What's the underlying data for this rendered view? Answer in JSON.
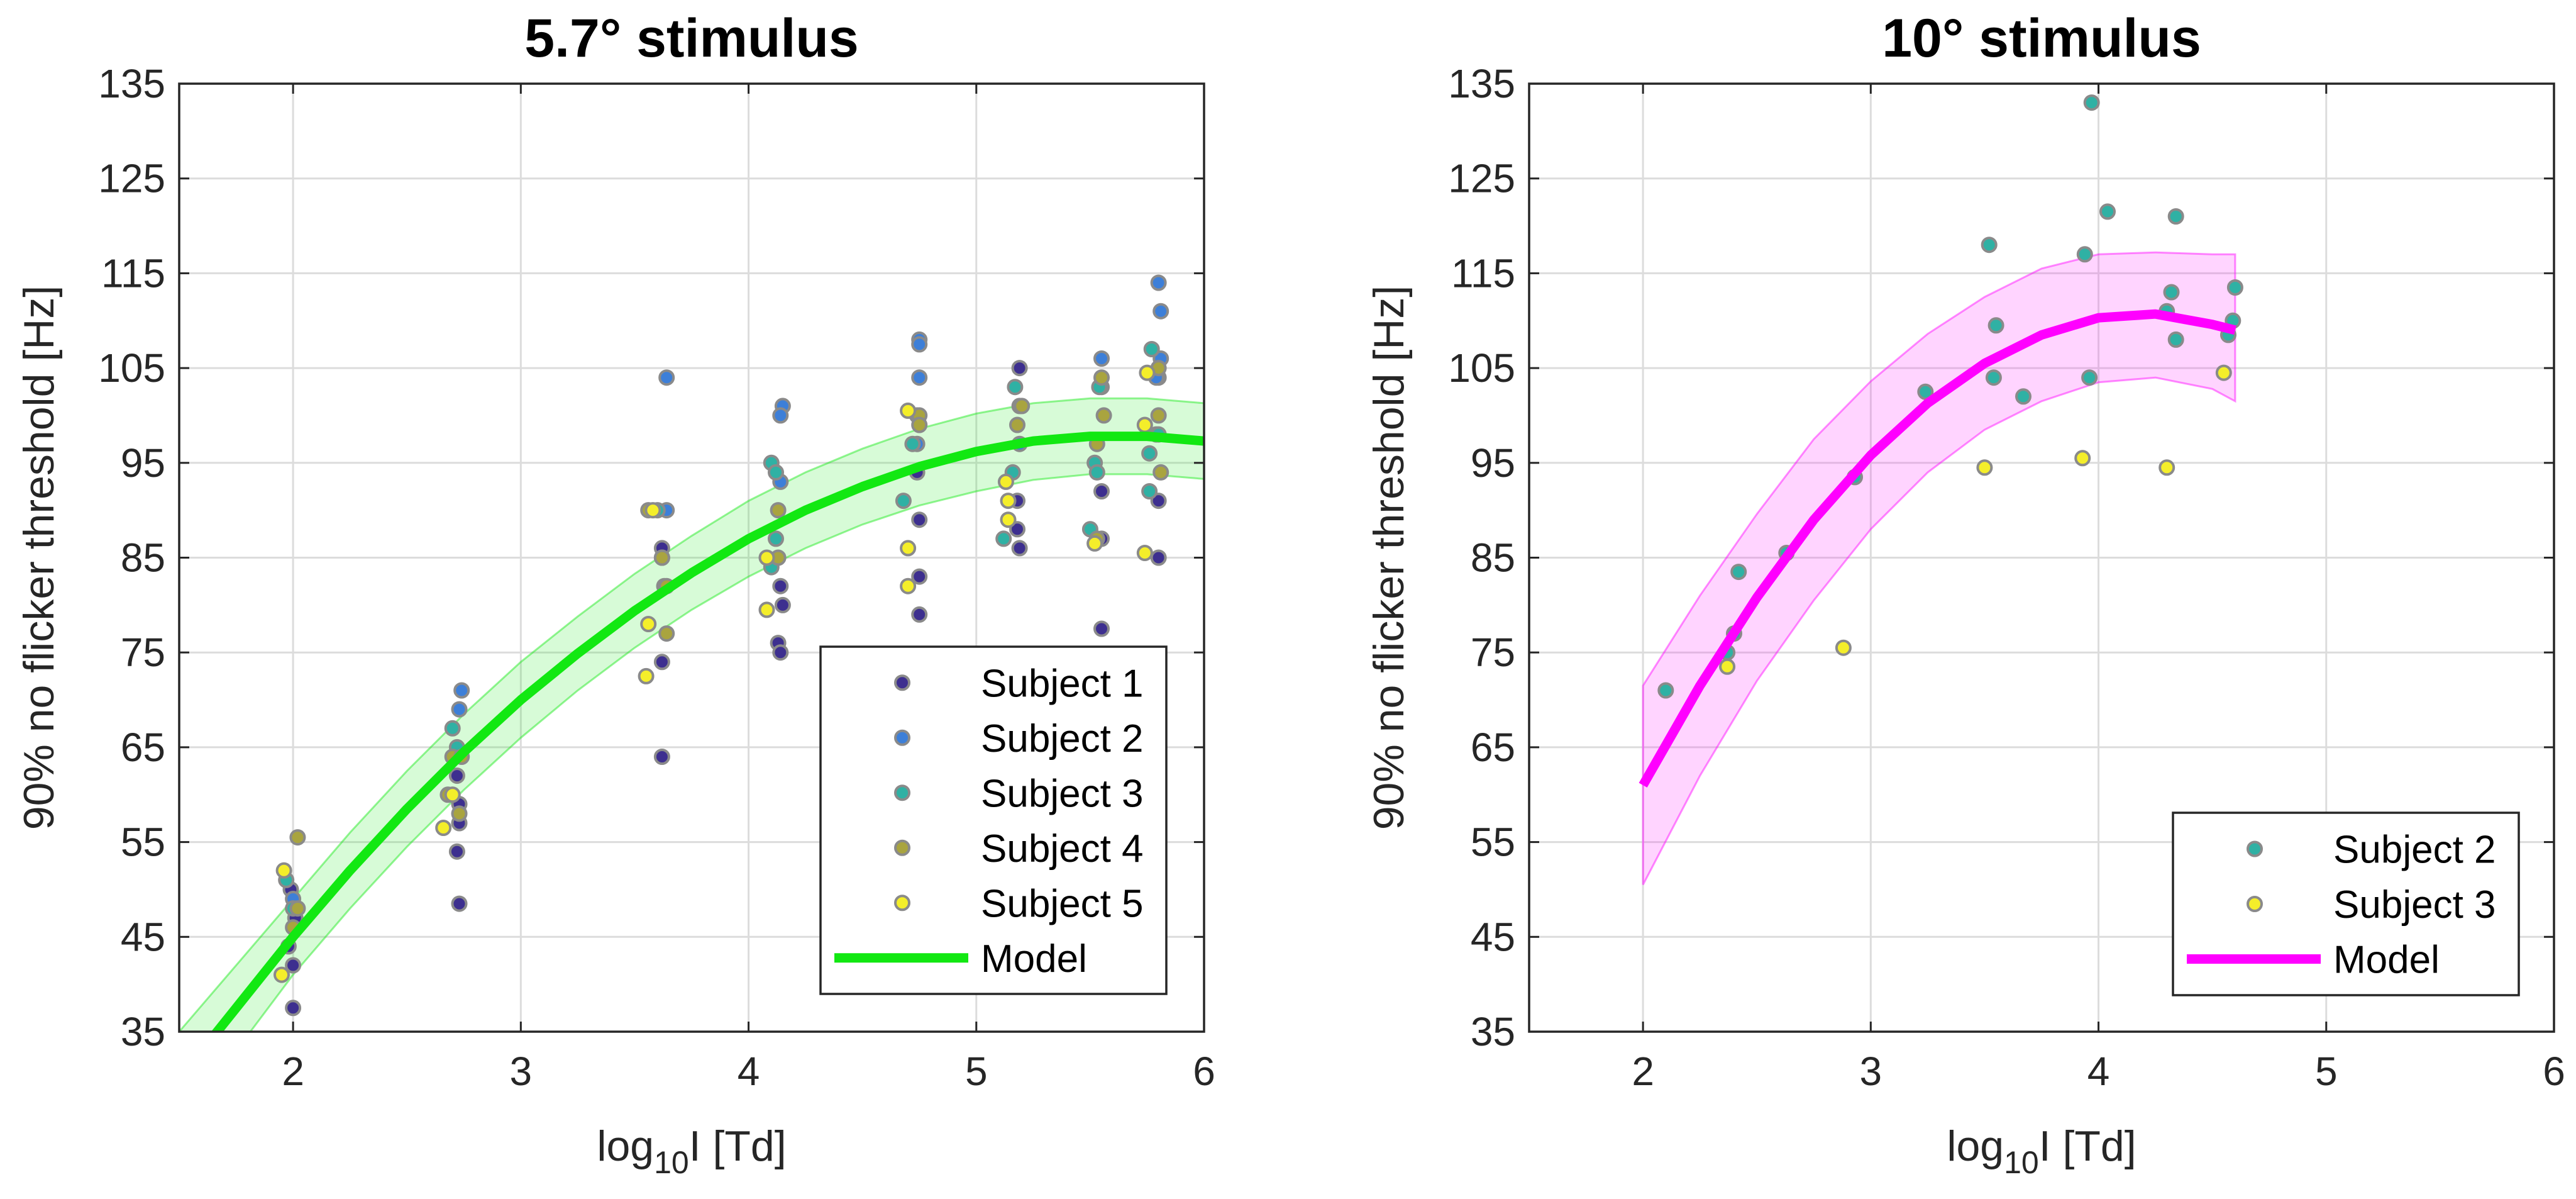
{
  "chart_data": [
    {
      "type": "scatter",
      "title": "5.7° stimulus",
      "xlabel": {
        "base": "log",
        "subscript": "10",
        "rest": "I  [Td]"
      },
      "ylabel": "90% no flicker threshold [Hz]",
      "xlim": [
        1.5,
        6
      ],
      "ylim": [
        35,
        135
      ],
      "xticks": [
        2,
        3,
        4,
        5,
        6
      ],
      "xtick_labels": [
        "2",
        "3",
        "4",
        "5",
        "6"
      ],
      "yticks": [
        35,
        45,
        55,
        65,
        75,
        85,
        95,
        105,
        115,
        125,
        135
      ],
      "ytick_labels": [
        "35",
        "45",
        "55",
        "65",
        "75",
        "85",
        "95",
        "105",
        "115",
        "125",
        "135"
      ],
      "grid": true,
      "legend_position": "bottom-right",
      "series": [
        {
          "name": "Subject 1",
          "color": "#3d2f8f",
          "points": [
            [
              1.98,
              44
            ],
            [
              2.01,
              47
            ],
            [
              2.0,
              42
            ],
            [
              2.0,
              37.5
            ],
            [
              1.99,
              50
            ],
            [
              2.72,
              62
            ],
            [
              2.73,
              59
            ],
            [
              2.73,
              57
            ],
            [
              2.72,
              54
            ],
            [
              2.73,
              48.5
            ],
            [
              3.62,
              64
            ],
            [
              3.62,
              74
            ],
            [
              3.63,
              82
            ],
            [
              3.62,
              86
            ],
            [
              4.13,
              76
            ],
            [
              4.15,
              80
            ],
            [
              4.14,
              82
            ],
            [
              4.14,
              75
            ],
            [
              4.75,
              79
            ],
            [
              4.75,
              83
            ],
            [
              4.75,
              89
            ],
            [
              4.74,
              94
            ],
            [
              5.18,
              88
            ],
            [
              5.19,
              86
            ],
            [
              5.18,
              91
            ],
            [
              5.19,
              105
            ],
            [
              5.55,
              77.5
            ],
            [
              5.55,
              87
            ],
            [
              5.55,
              92
            ],
            [
              5.8,
              85
            ],
            [
              5.8,
              91
            ],
            [
              5.79,
              98
            ],
            [
              5.8,
              104
            ]
          ]
        },
        {
          "name": "Subject 2",
          "color": "#3d7fd8",
          "points": [
            [
              2.0,
              49
            ],
            [
              2.74,
              71
            ],
            [
              2.73,
              69
            ],
            [
              3.64,
              104
            ],
            [
              3.64,
              90
            ],
            [
              4.15,
              101
            ],
            [
              4.14,
              100
            ],
            [
              4.14,
              93
            ],
            [
              4.75,
              108
            ],
            [
              4.75,
              107.5
            ],
            [
              4.75,
              104
            ],
            [
              4.74,
              100
            ],
            [
              4.74,
              97
            ],
            [
              5.19,
              101
            ],
            [
              5.19,
              97
            ],
            [
              5.55,
              106
            ],
            [
              5.55,
              103
            ],
            [
              5.8,
              114
            ],
            [
              5.81,
              111
            ],
            [
              5.81,
              106
            ],
            [
              5.79,
              104
            ]
          ]
        },
        {
          "name": "Subject 3",
          "color": "#2fb1a4",
          "points": [
            [
              1.97,
              51
            ],
            [
              2.0,
              48
            ],
            [
              2.7,
              67
            ],
            [
              2.72,
              65
            ],
            [
              3.6,
              90
            ],
            [
              3.62,
              85
            ],
            [
              4.1,
              95
            ],
            [
              4.12,
              94
            ],
            [
              4.12,
              87
            ],
            [
              4.1,
              84
            ],
            [
              4.72,
              97
            ],
            [
              4.68,
              91
            ],
            [
              5.12,
              87
            ],
            [
              5.17,
              103
            ],
            [
              5.16,
              94
            ],
            [
              5.5,
              88
            ],
            [
              5.52,
              95
            ],
            [
              5.53,
              94
            ],
            [
              5.54,
              103
            ],
            [
              5.77,
              107
            ],
            [
              5.76,
              92
            ],
            [
              5.76,
              96
            ],
            [
              5.8,
              98
            ]
          ]
        },
        {
          "name": "Subject 4",
          "color": "#a9a43f",
          "points": [
            [
              2.02,
              55.5
            ],
            [
              2.02,
              48
            ],
            [
              2.0,
              46
            ],
            [
              2.68,
              60
            ],
            [
              2.7,
              64
            ],
            [
              2.74,
              64
            ],
            [
              2.73,
              58
            ],
            [
              3.56,
              90
            ],
            [
              3.62,
              85
            ],
            [
              3.64,
              82
            ],
            [
              3.64,
              77
            ],
            [
              4.13,
              90
            ],
            [
              4.13,
              85
            ],
            [
              4.75,
              100
            ],
            [
              4.75,
              99
            ],
            [
              5.2,
              101
            ],
            [
              5.18,
              99
            ],
            [
              5.55,
              104
            ],
            [
              5.53,
              97
            ],
            [
              5.53,
              87
            ],
            [
              5.56,
              100
            ],
            [
              5.8,
              100
            ],
            [
              5.81,
              94
            ],
            [
              5.8,
              105
            ]
          ]
        },
        {
          "name": "Subject 5",
          "color": "#f4ee2a",
          "points": [
            [
              1.96,
              52
            ],
            [
              1.95,
              41
            ],
            [
              2.66,
              56.5
            ],
            [
              2.7,
              60
            ],
            [
              3.55,
              72.5
            ],
            [
              3.56,
              78
            ],
            [
              3.58,
              90
            ],
            [
              4.08,
              85
            ],
            [
              4.08,
              79.5
            ],
            [
              4.7,
              100.5
            ],
            [
              4.7,
              86
            ],
            [
              4.7,
              82
            ],
            [
              5.13,
              93
            ],
            [
              5.14,
              91
            ],
            [
              5.14,
              89
            ],
            [
              5.52,
              86.5
            ],
            [
              5.75,
              104.5
            ],
            [
              5.74,
              99
            ],
            [
              5.74,
              85.5
            ]
          ]
        }
      ],
      "model": {
        "name": "Model",
        "color": "#12e812",
        "band_color": "#12e812",
        "x": [
          1.5,
          1.75,
          2.0,
          2.25,
          2.5,
          2.75,
          3.0,
          3.25,
          3.5,
          3.75,
          4.0,
          4.25,
          4.5,
          4.75,
          5.0,
          5.25,
          5.5,
          5.75,
          6.0
        ],
        "y": [
          30,
          37.5,
          45,
          52,
          58.5,
          64.5,
          70,
          74.9,
          79.4,
          83.4,
          87,
          90,
          92.5,
          94.6,
          96.2,
          97.3,
          97.8,
          97.8,
          97.3
        ],
        "lower": [
          25,
          33,
          41,
          48,
          54.5,
          60.5,
          66,
          71,
          75.5,
          79.5,
          83,
          86,
          88.5,
          90.5,
          92,
          93.2,
          93.8,
          93.8,
          93.3
        ],
        "upper": [
          35,
          42,
          49,
          56,
          62.5,
          68.5,
          74,
          78.8,
          83.3,
          87.3,
          91,
          94,
          96.5,
          98.6,
          100.2,
          101.3,
          101.8,
          101.8,
          101.3
        ]
      },
      "legend": [
        "Subject 1",
        "Subject 2",
        "Subject 3",
        "Subject 4",
        "Subject 5",
        "Model"
      ]
    },
    {
      "type": "scatter",
      "title": "10° stimulus",
      "xlabel": {
        "base": "log",
        "subscript": "10",
        "rest": "I  [Td]"
      },
      "ylabel": "90% no flicker threshold [Hz]",
      "xlim": [
        1.5,
        6
      ],
      "ylim": [
        35,
        135
      ],
      "xticks": [
        2,
        3,
        4,
        5,
        6
      ],
      "xtick_labels": [
        "2",
        "3",
        "4",
        "5",
        "6"
      ],
      "yticks": [
        35,
        45,
        55,
        65,
        75,
        85,
        95,
        105,
        115,
        125,
        135
      ],
      "ytick_labels": [
        "35",
        "45",
        "55",
        "65",
        "75",
        "85",
        "95",
        "105",
        "115",
        "125",
        "135"
      ],
      "grid": true,
      "legend_position": "bottom-right",
      "series": [
        {
          "name": "Subject 2",
          "color": "#2fb1a4",
          "points": [
            [
              2.1,
              71
            ],
            [
              2.37,
              75
            ],
            [
              2.4,
              77
            ],
            [
              2.42,
              83.5
            ],
            [
              2.63,
              85.5
            ],
            [
              2.93,
              93.5
            ],
            [
              3.24,
              102.5
            ],
            [
              3.52,
              118
            ],
            [
              3.54,
              104
            ],
            [
              3.55,
              109.5
            ],
            [
              3.67,
              102
            ],
            [
              3.94,
              117
            ],
            [
              3.96,
              104
            ],
            [
              3.97,
              133
            ],
            [
              4.04,
              121.5
            ],
            [
              4.3,
              111
            ],
            [
              4.32,
              113
            ],
            [
              4.34,
              108
            ],
            [
              4.34,
              121
            ],
            [
              4.57,
              108.5
            ],
            [
              4.59,
              110
            ],
            [
              4.6,
              113.5
            ]
          ]
        },
        {
          "name": "Subject 3",
          "color": "#f4ee2a",
          "points": [
            [
              2.37,
              73.5
            ],
            [
              2.88,
              75.5
            ],
            [
              3.5,
              94.5
            ],
            [
              3.93,
              95.5
            ],
            [
              4.3,
              94.5
            ],
            [
              4.55,
              104.5
            ]
          ]
        }
      ],
      "model": {
        "name": "Model",
        "color": "#ff00ff",
        "band_color": "#ff00ff",
        "x": [
          2.0,
          2.25,
          2.5,
          2.75,
          3.0,
          3.25,
          3.5,
          3.75,
          4.0,
          4.25,
          4.5,
          4.6
        ],
        "y": [
          61,
          71.5,
          80.8,
          89,
          95.8,
          101.3,
          105.5,
          108.5,
          110.3,
          110.7,
          109.6,
          109
        ],
        "lower": [
          50.5,
          62,
          72,
          80.5,
          88,
          94,
          98.5,
          101.5,
          103.5,
          104,
          102.8,
          101.5
        ],
        "upper": [
          71.5,
          81,
          89.6,
          97.5,
          103.6,
          108.6,
          112.5,
          115.5,
          117,
          117.2,
          117,
          117
        ]
      },
      "legend": [
        "Subject 2",
        "Subject 3",
        "Model"
      ]
    }
  ]
}
